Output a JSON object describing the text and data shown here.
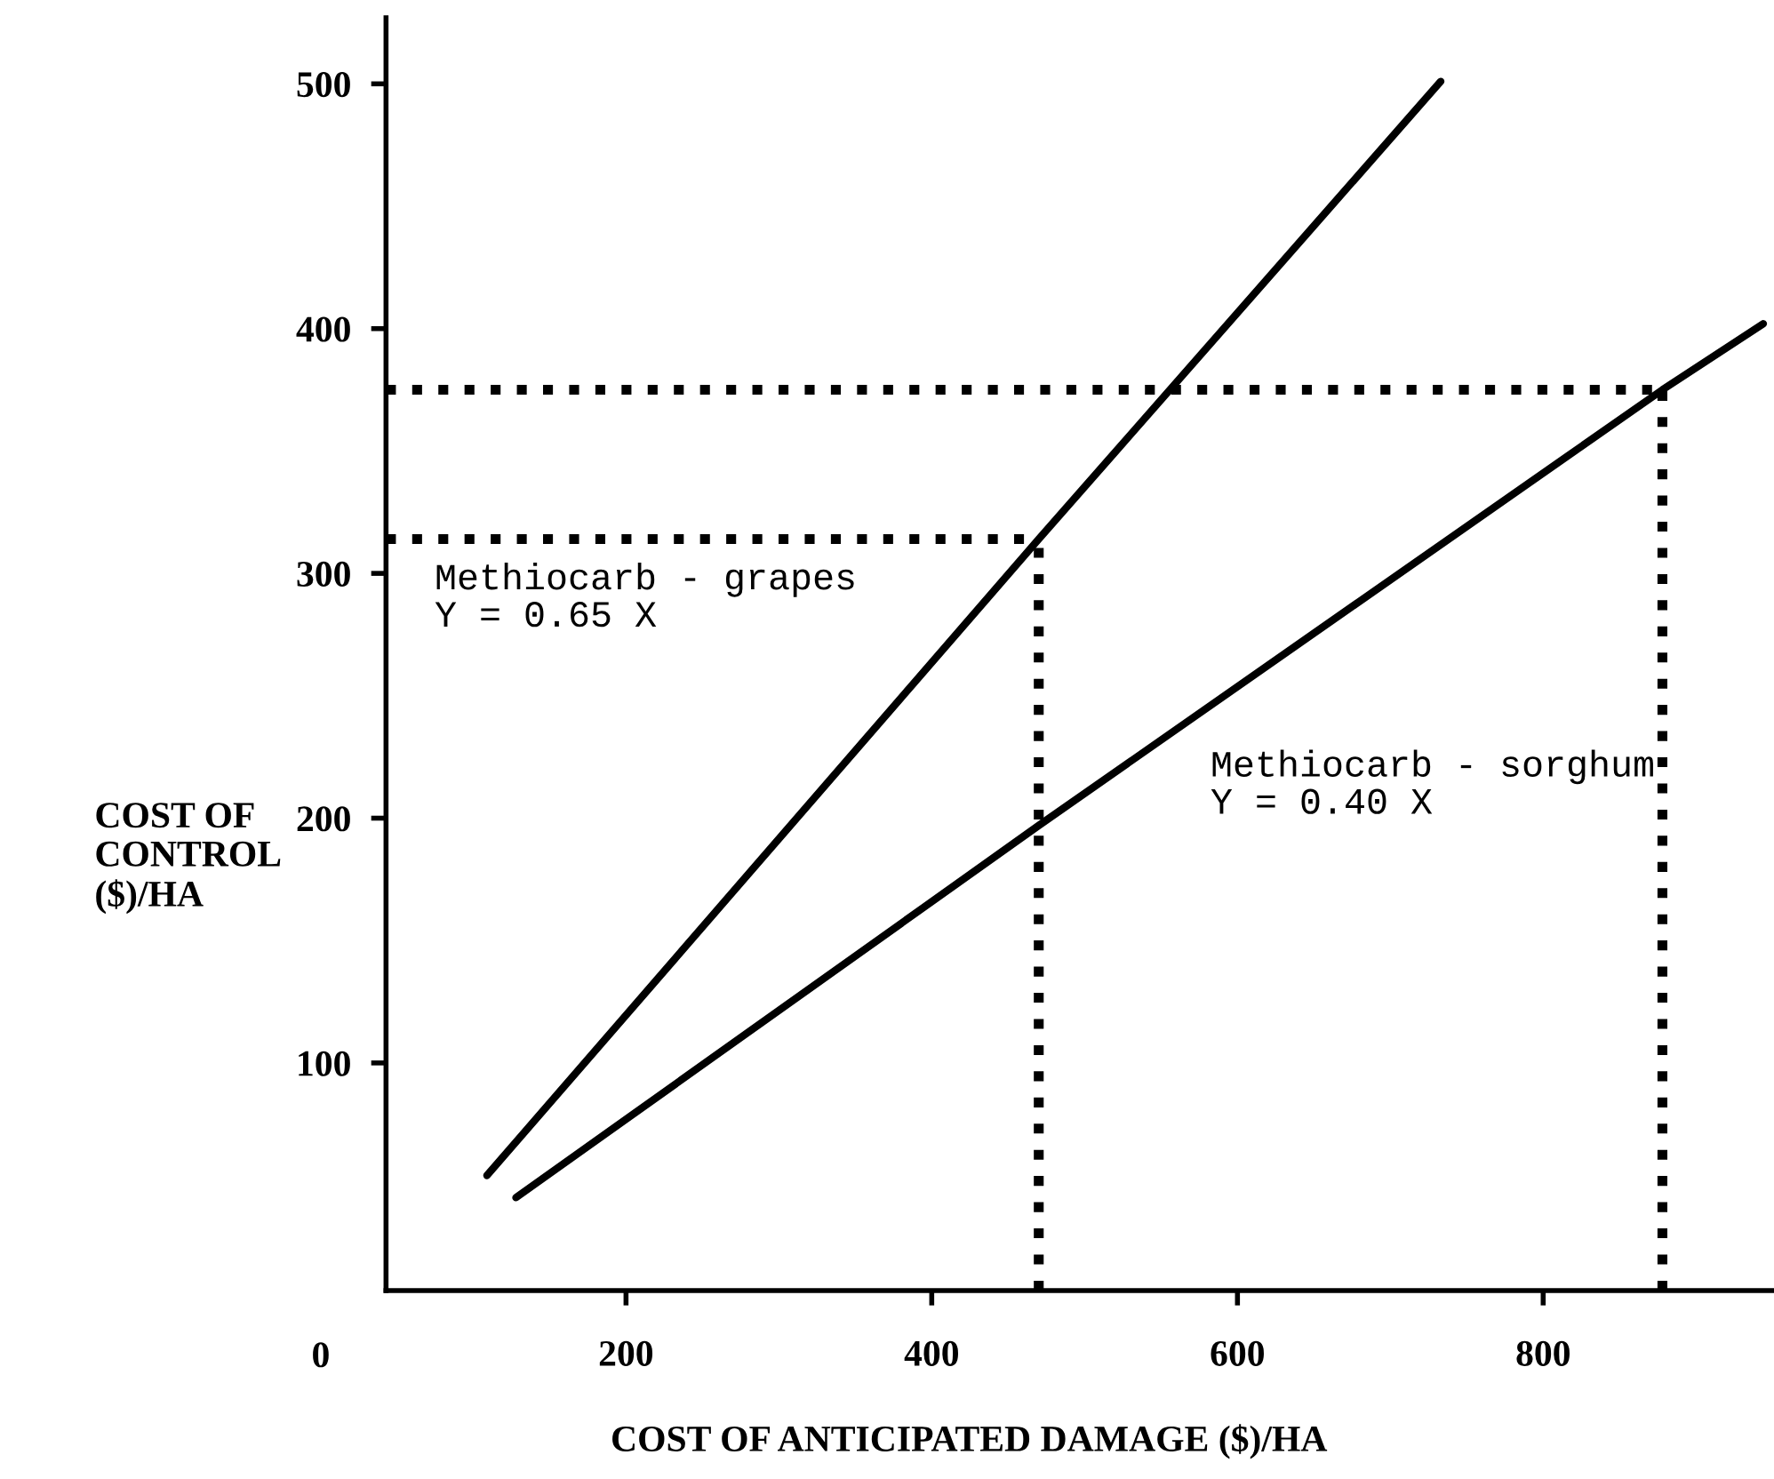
{
  "chart_data": {
    "type": "line",
    "xlabel": "COST OF ANTICIPATED DAMAGE ($)/HA",
    "ylabel": "COST OF\nCONTROL\n($)/HA",
    "xlim": [
      43,
      951
    ],
    "ylim": [
      7,
      527
    ],
    "xticks": [
      200,
      400,
      600,
      800
    ],
    "yticks": [
      100,
      200,
      300,
      400,
      500
    ],
    "grid": false,
    "line_style": "solid",
    "marker": "none",
    "series": [
      {
        "color": "#000000",
        "x": [
          109,
          470,
          733
        ],
        "values": [
          54,
          314,
          501
        ]
      },
      {
        "color": "#000000",
        "x": [
          128,
          470,
          878,
          944
        ],
        "values": [
          45,
          197,
          375,
          402
        ]
      },
      {
        "color": "#000000",
        "line_style": "dotted",
        "x": [
          43,
          878
        ],
        "values": [
          375,
          375
        ]
      },
      {
        "color": "#000000",
        "line_style": "dotted",
        "x": [
          43,
          470
        ],
        "values": [
          314,
          314
        ]
      },
      {
        "color": "#000000",
        "line_style": "dotted",
        "x": [
          470,
          470
        ],
        "values": [
          7,
          314
        ]
      },
      {
        "color": "#000000",
        "line_style": "dotted",
        "x": [
          878,
          878
        ],
        "values": [
          7,
          375
        ]
      }
    ],
    "annotations": [
      "0",
      "Methiocarb - grapes\nY = 0.65 X",
      "Methiocarb - sorghum\nY = 0.40 X"
    ]
  }
}
